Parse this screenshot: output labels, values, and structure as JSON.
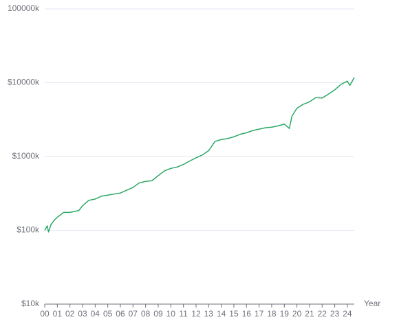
{
  "chart_data": {
    "type": "line",
    "x_label": "Year",
    "color": "#2aa865",
    "log_y": true,
    "grid": true,
    "x": [
      0,
      0.2,
      0.3,
      0.5,
      0.8,
      1,
      1.5,
      2,
      2.7,
      3,
      3.5,
      4,
      4.5,
      5,
      5.5,
      6,
      6.5,
      7,
      7.5,
      8,
      8.5,
      9,
      9.5,
      10,
      10.5,
      11,
      11.5,
      12,
      12.5,
      13,
      13.5,
      14,
      14.5,
      15,
      15.5,
      16,
      16.5,
      17,
      17.5,
      18,
      18.5,
      19,
      19.4,
      19.6,
      20,
      20.5,
      21,
      21.5,
      22,
      22.5,
      23,
      23.5,
      24,
      24.2,
      24.55
    ],
    "values": [
      100,
      115,
      95,
      120,
      140,
      150,
      175,
      175,
      185,
      215,
      255,
      265,
      290,
      300,
      310,
      320,
      350,
      380,
      440,
      460,
      470,
      550,
      640,
      690,
      720,
      780,
      870,
      960,
      1050,
      1200,
      1600,
      1700,
      1750,
      1850,
      2000,
      2100,
      2250,
      2350,
      2450,
      2500,
      2600,
      2750,
      2400,
      3500,
      4500,
      5100,
      5500,
      6300,
      6200,
      7000,
      8000,
      9500,
      10500,
      9200,
      11800
    ],
    "xlim": [
      0,
      24.55
    ],
    "xticks": [
      {
        "value": 0,
        "label": "00"
      },
      {
        "value": 1,
        "label": "01"
      },
      {
        "value": 2,
        "label": "02"
      },
      {
        "value": 3,
        "label": "03"
      },
      {
        "value": 4,
        "label": "04"
      },
      {
        "value": 5,
        "label": "05"
      },
      {
        "value": 6,
        "label": "06"
      },
      {
        "value": 7,
        "label": "07"
      },
      {
        "value": 8,
        "label": "08"
      },
      {
        "value": 9,
        "label": "09"
      },
      10,
      11,
      12,
      13,
      14,
      15,
      16,
      17,
      18,
      19,
      20,
      21,
      22,
      23,
      24
    ],
    "ylim": [
      10,
      100000
    ],
    "yticks": [
      {
        "value": 10,
        "label": "$10k"
      },
      {
        "value": 100,
        "label": "$100k"
      },
      {
        "value": 1000,
        "label": "$1000k"
      },
      {
        "value": 10000,
        "label": "$10000k"
      },
      {
        "value": 100000,
        "label": "100000k"
      }
    ]
  }
}
